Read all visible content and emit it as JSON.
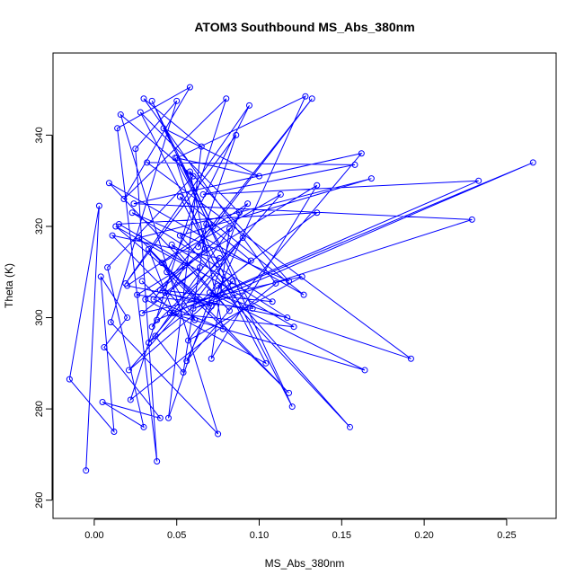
{
  "chart_data": {
    "type": "line",
    "title": "ATOM3 Southbound MS_Abs_380nm",
    "xlabel": "MS_Abs_380nm",
    "ylabel": "Theta (K)",
    "xlim": [
      -0.025,
      0.28
    ],
    "ylim": [
      256,
      358
    ],
    "x_ticks": [
      0.0,
      0.05,
      0.1,
      0.15,
      0.2,
      0.25
    ],
    "x_tick_labels": [
      "0.00",
      "0.05",
      "0.10",
      "0.15",
      "0.20",
      "0.25"
    ],
    "y_ticks": [
      260,
      280,
      300,
      320,
      340
    ],
    "y_tick_labels": [
      "260",
      "280",
      "300",
      "320",
      "340"
    ],
    "grid": false,
    "color": "#0000ff",
    "series": [
      {
        "x": [
          -0.005,
          0.003,
          -0.015,
          0.012,
          0.004,
          0.02,
          0.006,
          0.04,
          0.005,
          0.03,
          0.008,
          0.06,
          0.016,
          0.075,
          0.01,
          0.05,
          0.025,
          0.038,
          0.014,
          0.058,
          0.018,
          0.08,
          0.022,
          0.11,
          0.03,
          0.065,
          0.045,
          0.088,
          0.028,
          0.12,
          0.035,
          0.072,
          0.042,
          0.1,
          0.05,
          0.128,
          0.056,
          0.162,
          0.024,
          0.229,
          0.06,
          0.266,
          0.038,
          0.233,
          0.066,
          0.158,
          0.032,
          0.192,
          0.07,
          0.164,
          0.046,
          0.121,
          0.015,
          0.135,
          0.075,
          0.155,
          0.052,
          0.168,
          0.027,
          0.118,
          0.044,
          0.094,
          0.019,
          0.086,
          0.063,
          0.132,
          0.036,
          0.078,
          0.058,
          0.118,
          0.023,
          0.108,
          0.04,
          0.082,
          0.071,
          0.135,
          0.026,
          0.096,
          0.049,
          0.067,
          0.031,
          0.104,
          0.052,
          0.127,
          0.009,
          0.082,
          0.047,
          0.117,
          0.02,
          0.093,
          0.037,
          0.054,
          0.068,
          0.095,
          0.033,
          0.076,
          0.011,
          0.061,
          0.041,
          0.113,
          0.021,
          0.084,
          0.057,
          0.126,
          0.029,
          0.064,
          0.043,
          0.071,
          0.013,
          0.055,
          0.035,
          0.09,
          0.062,
          0.033,
          0.048,
          0.029
        ],
        "y": [
          266.5,
          324.5,
          286.5,
          275,
          309,
          300,
          293.5,
          278,
          281.5,
          276,
          311,
          331,
          344.5,
          274.5,
          299,
          347.5,
          337,
          268.5,
          341.5,
          350.5,
          326,
          348,
          282,
          307.5,
          348,
          337.5,
          278,
          323,
          345,
          280.5,
          347.5,
          320,
          341.5,
          331,
          335,
          348.5,
          290.5,
          336,
          325,
          321.5,
          302,
          334,
          299.5,
          330,
          327,
          333.5,
          334,
          291,
          305.5,
          288.5,
          301,
          298,
          320.5,
          323,
          307,
          276,
          318,
          330.5,
          317.5,
          283.5,
          310,
          346.5,
          307.5,
          340,
          315.5,
          348,
          304,
          297.5,
          332,
          308,
          323,
          303.5,
          306,
          319.5,
          291,
          329,
          305,
          302,
          335,
          315,
          304,
          290,
          326.5,
          305,
          329.5,
          301.5,
          316,
          300,
          307,
          325,
          296,
          288,
          320.5,
          312.5,
          294.5,
          313,
          318,
          299.5,
          312,
          327,
          288.5,
          308,
          295,
          309,
          301,
          311,
          305.5,
          302.5,
          320,
          311.5,
          298,
          317.5,
          304,
          315,
          301,
          308
        ]
      }
    ]
  }
}
